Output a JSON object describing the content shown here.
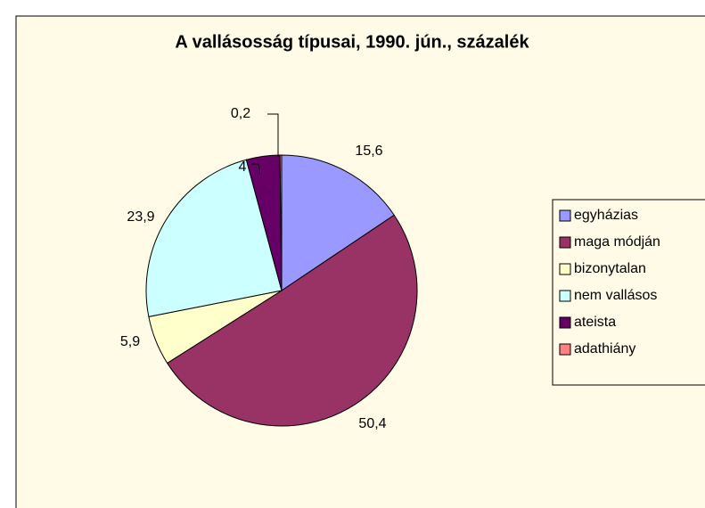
{
  "chart_data": {
    "type": "pie",
    "title": "A vallásosság típusai, 1990. jún., százalék",
    "categories": [
      "egyházias",
      "maga módján",
      "bizonytalan",
      "nem vallásos",
      "ateista",
      "adathiány"
    ],
    "values": [
      15.6,
      50.4,
      5.9,
      23.9,
      4,
      0.2
    ],
    "value_labels": [
      "15,6",
      "50,4",
      "5,9",
      "23,9",
      "4",
      "0,2"
    ],
    "colors": [
      "#9999ff",
      "#993366",
      "#ffffcc",
      "#ccffff",
      "#660066",
      "#ff8080"
    ],
    "legend": "right"
  }
}
